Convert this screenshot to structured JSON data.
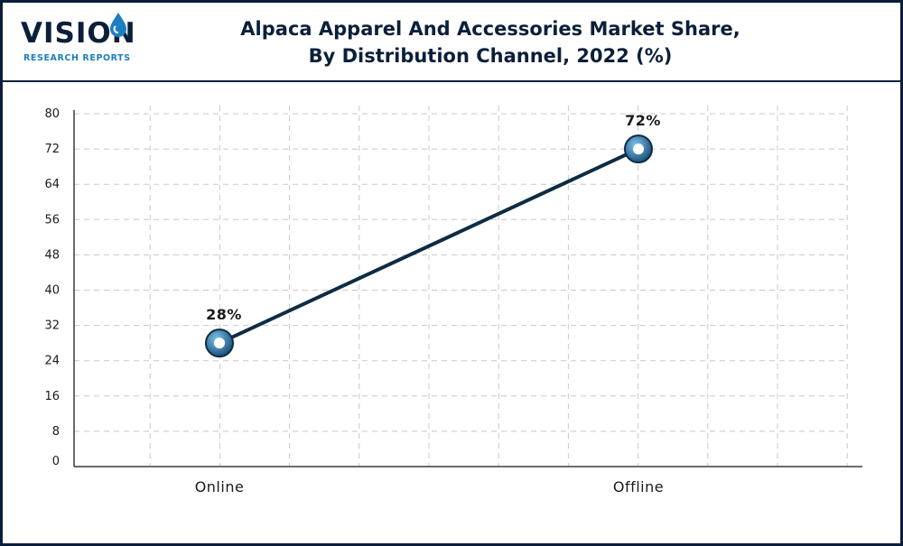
{
  "logo": {
    "word": "VISION",
    "subtitle": "RESEARCH REPORTS",
    "icon": "water-drop-icon"
  },
  "title_line1": "Alpaca Apparel And Accessories Market Share,",
  "title_line2": "By Distribution Channel, 2022 (%)",
  "colors": {
    "frame": "#0b1f3a",
    "line": "#0e2c43",
    "marker_outer": "#1b4f78",
    "marker_inner": "#ffffff",
    "grid": "#c8c8c8",
    "brand_blue": "#1d7ec2"
  },
  "chart_data": {
    "type": "line",
    "categories": [
      "Online",
      "Offline"
    ],
    "values": [
      28,
      72
    ],
    "data_labels": [
      "28%",
      "72%"
    ],
    "xlabel": "",
    "ylabel": "",
    "ylim": [
      0,
      80
    ],
    "yticks": [
      0,
      8,
      16,
      24,
      32,
      40,
      48,
      56,
      64,
      72,
      80
    ],
    "grid": true,
    "legend": "none"
  }
}
